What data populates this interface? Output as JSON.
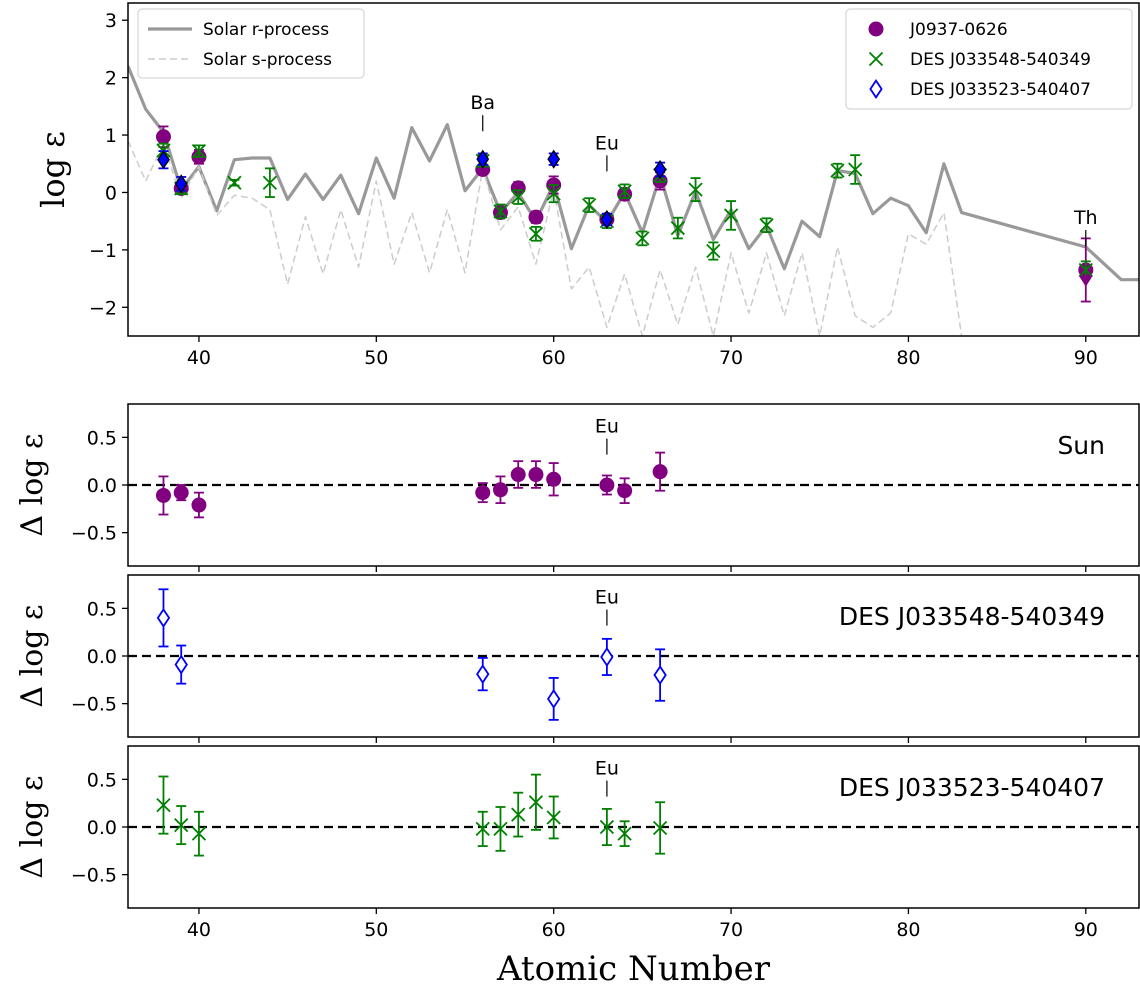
{
  "chart_data": [
    {
      "type": "scatter",
      "ylabel": "log ε",
      "xlim": [
        36,
        93
      ],
      "ylim": [
        -2.5,
        3.3
      ],
      "xticks": [
        40,
        50,
        60,
        70,
        80,
        90
      ],
      "yticks": [
        -2,
        -1,
        0,
        1,
        2,
        3
      ],
      "legend_left": {
        "placement": "top-left",
        "entries": [
          "Solar r-process",
          "Solar s-process"
        ]
      },
      "legend_right": {
        "placement": "top-right",
        "entries": [
          "J0937-0626",
          "DES J033548-540349",
          "DES J033523-540407"
        ]
      },
      "annotations": [
        {
          "text": "Ba",
          "x": 56,
          "y": 1.45
        },
        {
          "text": "Eu",
          "x": 63,
          "y": 0.75
        },
        {
          "text": "Th",
          "x": 90,
          "y": -0.55
        }
      ],
      "lines": [
        {
          "name": "Solar r-process",
          "color": "#999999",
          "style": "solid",
          "x": [
            36,
            37,
            38,
            39,
            40,
            41,
            42,
            43,
            44,
            45,
            46,
            47,
            48,
            49,
            50,
            51,
            52,
            53,
            54,
            55,
            56,
            57,
            58,
            59,
            60,
            61,
            62,
            63,
            64,
            65,
            66,
            67,
            68,
            69,
            70,
            71,
            72,
            73,
            74,
            75,
            76,
            77,
            78,
            79,
            80,
            81,
            82,
            83,
            90,
            92,
            93
          ],
          "y": [
            2.2,
            1.45,
            1.05,
            0.05,
            0.45,
            -0.32,
            0.57,
            0.6,
            0.6,
            -0.12,
            0.32,
            -0.12,
            0.3,
            -0.37,
            0.6,
            -0.1,
            1.13,
            0.55,
            1.18,
            0.03,
            0.42,
            -0.35,
            0.0,
            -0.5,
            0.15,
            -0.98,
            -0.22,
            -0.52,
            0.0,
            -0.7,
            0.3,
            -0.75,
            0.02,
            -0.82,
            -0.3,
            -0.98,
            -0.58,
            -1.33,
            -0.5,
            -0.77,
            0.38,
            0.33,
            -0.37,
            -0.1,
            -0.23,
            -0.7,
            0.5,
            -0.35,
            -0.95,
            -1.52,
            -1.52
          ]
        },
        {
          "name": "Solar s-process",
          "color": "#cccccc",
          "style": "dashed",
          "x": [
            36,
            37,
            38,
            39,
            40,
            41,
            42,
            43,
            44,
            45,
            46,
            47,
            48,
            49,
            50,
            51,
            52,
            53,
            54,
            55,
            56,
            57,
            58,
            59,
            60,
            61,
            62,
            63,
            64,
            65,
            66,
            67,
            68,
            69,
            70,
            71,
            72,
            73,
            74,
            75,
            76,
            77,
            78,
            79,
            80,
            81,
            82,
            83
          ],
          "y": [
            0.9,
            0.2,
            0.85,
            -0.1,
            0.45,
            -0.4,
            -0.05,
            -0.1,
            -0.3,
            -1.6,
            -0.42,
            -1.42,
            -0.3,
            -1.3,
            0.2,
            -1.25,
            -0.35,
            -1.4,
            -0.3,
            -1.4,
            0.42,
            -0.65,
            -0.25,
            -1.25,
            0.05,
            -1.68,
            -1.3,
            -2.35,
            -1.42,
            -2.5,
            -1.35,
            -2.3,
            -1.3,
            -2.5,
            -1.05,
            -2.1,
            -1.05,
            -2.15,
            -1.05,
            -2.5,
            -0.95,
            -2.15,
            -2.35,
            -2.1,
            -0.72,
            -0.9,
            -0.35,
            -2.5
          ]
        }
      ],
      "series": [
        {
          "name": "J0937-0626",
          "color": "#800080",
          "marker": "filled-circle",
          "points": [
            {
              "x": 38,
              "y": 0.97,
              "err": 0.18
            },
            {
              "x": 39,
              "y": 0.07,
              "err": 0.08
            },
            {
              "x": 40,
              "y": 0.62,
              "err": 0.12
            },
            {
              "x": 56,
              "y": 0.4,
              "err": 0.07
            },
            {
              "x": 57,
              "y": -0.35,
              "err": 0.1
            },
            {
              "x": 58,
              "y": 0.08,
              "err": 0.1
            },
            {
              "x": 59,
              "y": -0.43,
              "err": 0.1
            },
            {
              "x": 60,
              "y": 0.13,
              "err": 0.15
            },
            {
              "x": 63,
              "y": -0.47,
              "err": 0.07
            },
            {
              "x": 64,
              "y": -0.03,
              "err": 0.1
            },
            {
              "x": 66,
              "y": 0.2,
              "err": 0.15
            },
            {
              "x": 90,
              "y": -1.35,
              "err": 0.55
            }
          ]
        },
        {
          "name": "DES J033548-540349",
          "color": "#008000",
          "marker": "x",
          "points": [
            {
              "x": 38,
              "y": 0.73,
              "err": 0.12
            },
            {
              "x": 39,
              "y": 0.07,
              "err": 0.1
            },
            {
              "x": 40,
              "y": 0.72,
              "err": 0.1
            },
            {
              "x": 42,
              "y": 0.17,
              "err": 0.05
            },
            {
              "x": 44,
              "y": 0.17,
              "err": 0.25
            },
            {
              "x": 56,
              "y": 0.55,
              "err": 0.1
            },
            {
              "x": 57,
              "y": -0.33,
              "err": 0.12
            },
            {
              "x": 58,
              "y": -0.08,
              "err": 0.12
            },
            {
              "x": 59,
              "y": -0.72,
              "err": 0.12
            },
            {
              "x": 60,
              "y": -0.02,
              "err": 0.15
            },
            {
              "x": 62,
              "y": -0.22,
              "err": 0.12
            },
            {
              "x": 63,
              "y": -0.5,
              "err": 0.12
            },
            {
              "x": 64,
              "y": 0.02,
              "err": 0.12
            },
            {
              "x": 65,
              "y": -0.8,
              "err": 0.12
            },
            {
              "x": 66,
              "y": 0.3,
              "err": 0.12
            },
            {
              "x": 67,
              "y": -0.62,
              "err": 0.18
            },
            {
              "x": 68,
              "y": 0.05,
              "err": 0.2
            },
            {
              "x": 69,
              "y": -1.02,
              "err": 0.15
            },
            {
              "x": 70,
              "y": -0.4,
              "err": 0.25
            },
            {
              "x": 72,
              "y": -0.57,
              "err": 0.12
            },
            {
              "x": 76,
              "y": 0.38,
              "err": 0.12
            },
            {
              "x": 77,
              "y": 0.4,
              "err": 0.25
            },
            {
              "x": 90,
              "y": -1.35,
              "err": 0.15
            }
          ]
        },
        {
          "name": "DES J033523-540407",
          "color": "#0000ff",
          "marker": "filled-diamond",
          "points": [
            {
              "x": 38,
              "y": 0.57,
              "err": 0.15
            },
            {
              "x": 39,
              "y": 0.15,
              "err": 0.12
            },
            {
              "x": 56,
              "y": 0.58,
              "err": 0.1
            },
            {
              "x": 60,
              "y": 0.58,
              "err": 0.1
            },
            {
              "x": 63,
              "y": -0.47,
              "err": 0.1
            },
            {
              "x": 66,
              "y": 0.4,
              "err": 0.12
            }
          ]
        }
      ],
      "upper_limits": [
        {
          "series": "J0937-0626",
          "x": 90,
          "y": -1.52
        }
      ]
    },
    {
      "type": "scatter",
      "ylabel": "Δ log ε",
      "panel_label": "Sun",
      "xlim": [
        36,
        93
      ],
      "ylim": [
        -0.85,
        0.85
      ],
      "yticks": [
        -0.5,
        0.0,
        0.5
      ],
      "ytick_labels": [
        "−0.5",
        "0.0",
        "0.5"
      ],
      "annotations": [
        {
          "text": "Eu",
          "x": 63,
          "y": 0.55
        }
      ],
      "series": [
        {
          "color": "#800080",
          "marker": "filled-circle",
          "points": [
            {
              "x": 38,
              "y": -0.11,
              "err": 0.2
            },
            {
              "x": 39,
              "y": -0.08,
              "err": 0.08
            },
            {
              "x": 40,
              "y": -0.21,
              "err": 0.13
            },
            {
              "x": 56,
              "y": -0.08,
              "err": 0.1
            },
            {
              "x": 57,
              "y": -0.05,
              "err": 0.14
            },
            {
              "x": 58,
              "y": 0.11,
              "err": 0.14
            },
            {
              "x": 59,
              "y": 0.11,
              "err": 0.14
            },
            {
              "x": 60,
              "y": 0.06,
              "err": 0.17
            },
            {
              "x": 63,
              "y": 0.0,
              "err": 0.1
            },
            {
              "x": 64,
              "y": -0.06,
              "err": 0.13
            },
            {
              "x": 66,
              "y": 0.14,
              "err": 0.2
            }
          ]
        }
      ]
    },
    {
      "type": "scatter",
      "ylabel": "Δ log ε",
      "panel_label": "DES J033548-540349",
      "xlim": [
        36,
        93
      ],
      "ylim": [
        -0.85,
        0.85
      ],
      "yticks": [
        -0.5,
        0.0,
        0.5
      ],
      "ytick_labels": [
        "−0.5",
        "0.0",
        "0.5"
      ],
      "annotations": [
        {
          "text": "Eu",
          "x": 63,
          "y": 0.55
        }
      ],
      "series": [
        {
          "color": "#0000ff",
          "marker": "open-diamond",
          "points": [
            {
              "x": 38,
              "y": 0.4,
              "err": 0.3
            },
            {
              "x": 39,
              "y": -0.09,
              "err": 0.2
            },
            {
              "x": 56,
              "y": -0.19,
              "err": 0.17
            },
            {
              "x": 60,
              "y": -0.45,
              "err": 0.22
            },
            {
              "x": 63,
              "y": -0.01,
              "err": 0.19
            },
            {
              "x": 66,
              "y": -0.2,
              "err": 0.27
            }
          ]
        }
      ]
    },
    {
      "type": "scatter",
      "ylabel": "Δ log ε",
      "xlabel": "Atomic Number",
      "panel_label": "DES J033523-540407",
      "xlim": [
        36,
        93
      ],
      "ylim": [
        -0.85,
        0.85
      ],
      "xticks": [
        40,
        50,
        60,
        70,
        80,
        90
      ],
      "yticks": [
        -0.5,
        0.0,
        0.5
      ],
      "ytick_labels": [
        "−0.5",
        "0.0",
        "0.5"
      ],
      "annotations": [
        {
          "text": "Eu",
          "x": 63,
          "y": 0.55
        }
      ],
      "series": [
        {
          "color": "#008000",
          "marker": "x",
          "points": [
            {
              "x": 38,
              "y": 0.23,
              "err": 0.3
            },
            {
              "x": 39,
              "y": 0.02,
              "err": 0.2
            },
            {
              "x": 40,
              "y": -0.07,
              "err": 0.23
            },
            {
              "x": 56,
              "y": -0.02,
              "err": 0.18
            },
            {
              "x": 57,
              "y": -0.02,
              "err": 0.23
            },
            {
              "x": 58,
              "y": 0.13,
              "err": 0.23
            },
            {
              "x": 59,
              "y": 0.26,
              "err": 0.29
            },
            {
              "x": 60,
              "y": 0.1,
              "err": 0.22
            },
            {
              "x": 63,
              "y": 0.0,
              "err": 0.19
            },
            {
              "x": 64,
              "y": -0.07,
              "err": 0.13
            },
            {
              "x": 66,
              "y": -0.01,
              "err": 0.27
            }
          ]
        }
      ]
    }
  ]
}
